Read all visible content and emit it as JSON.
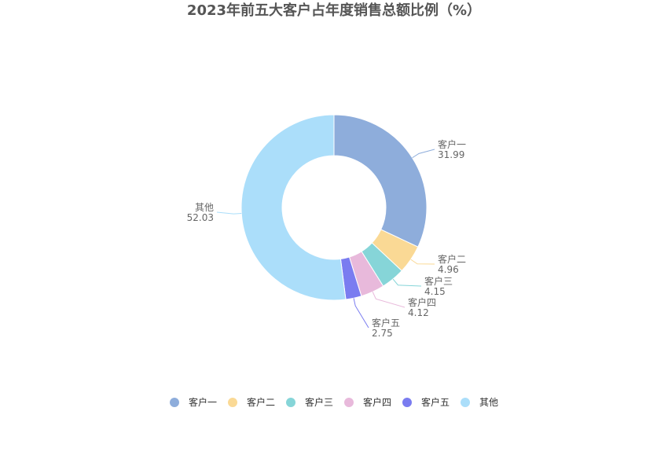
{
  "chart_data": {
    "type": "pie",
    "title": "2023年前五大客户占年度销售总额比例（%）",
    "categories": [
      "客户一",
      "客户二",
      "客户三",
      "客户四",
      "客户五",
      "其他"
    ],
    "values": [
      31.99,
      4.96,
      4.15,
      4.12,
      2.75,
      52.03
    ],
    "value_labels": [
      "31.99",
      "4.96",
      "4.15",
      "4.12",
      "2.75",
      "52.03"
    ],
    "colors": [
      "#8eaddb",
      "#fad995",
      "#86d5d8",
      "#e8b9db",
      "#7a7cf0",
      "#abdefa"
    ],
    "legend_position": "bottom"
  }
}
